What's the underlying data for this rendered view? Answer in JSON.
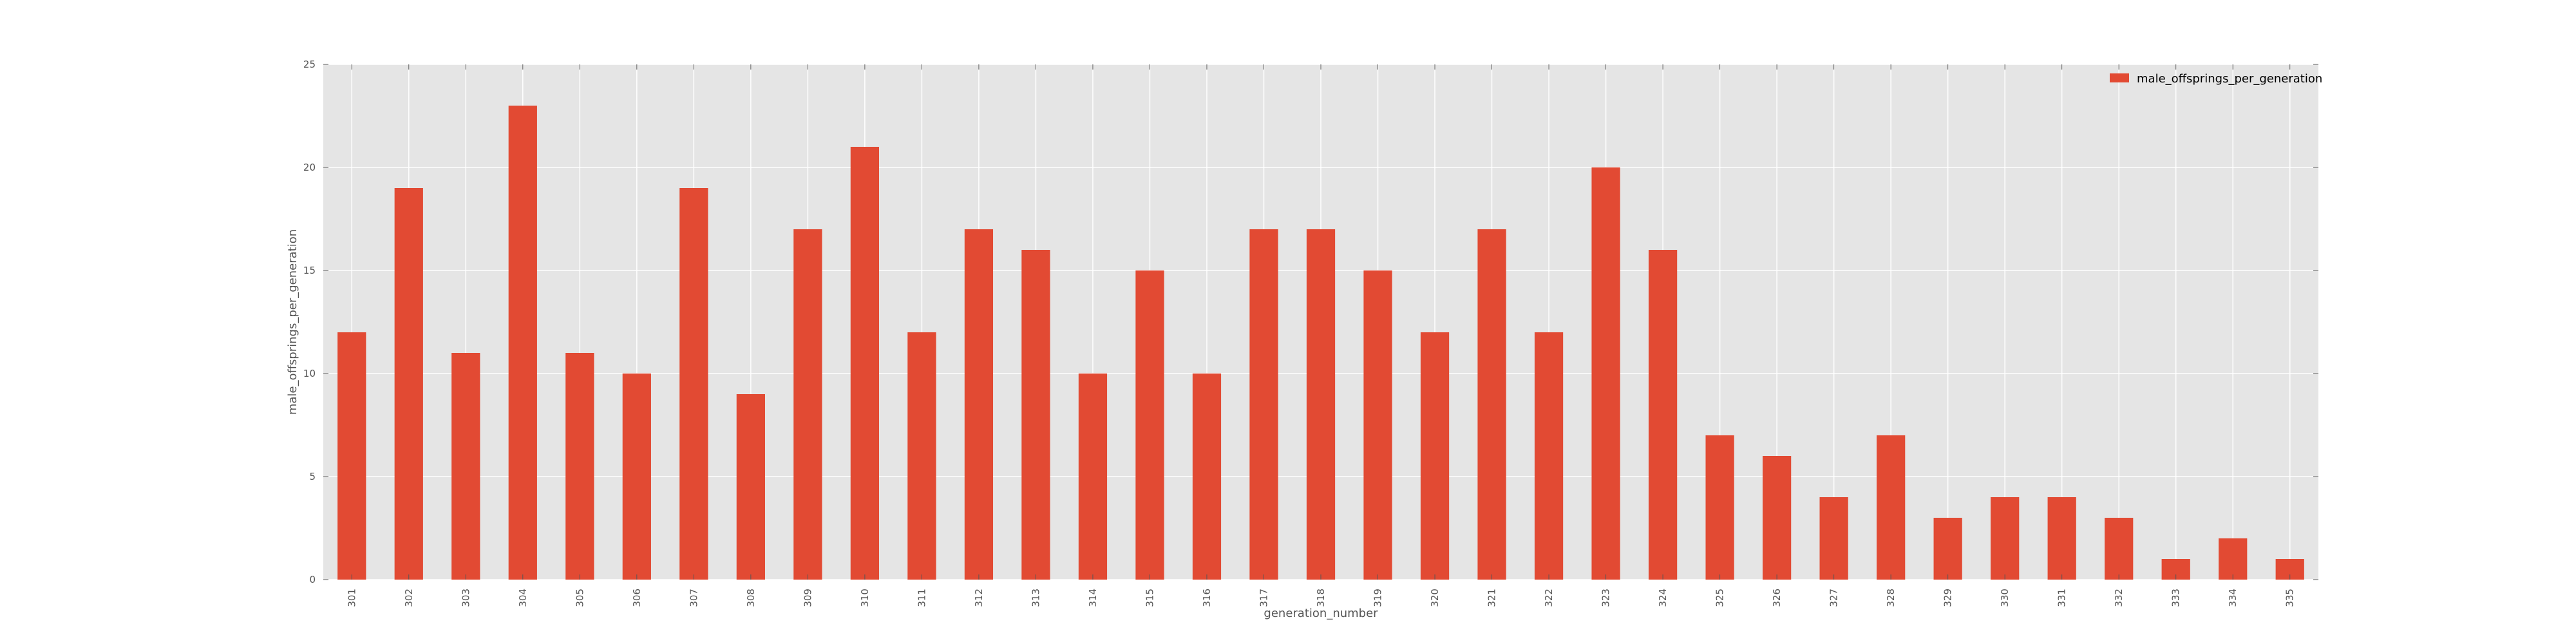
{
  "chart_data": {
    "type": "bar",
    "categories": [
      "301",
      "302",
      "303",
      "304",
      "305",
      "306",
      "307",
      "308",
      "309",
      "310",
      "311",
      "312",
      "313",
      "314",
      "315",
      "316",
      "317",
      "318",
      "319",
      "320",
      "321",
      "322",
      "323",
      "324",
      "325",
      "326",
      "327",
      "328",
      "329",
      "330",
      "331",
      "332",
      "333",
      "334",
      "335"
    ],
    "series": [
      {
        "name": "male_offsprings_per_generation",
        "values": [
          12,
          19,
          11,
          23,
          11,
          10,
          19,
          9,
          17,
          21,
          12,
          17,
          16,
          10,
          15,
          10,
          17,
          17,
          15,
          12,
          17,
          12,
          20,
          16,
          7,
          6,
          4,
          7,
          3,
          4,
          4,
          3,
          1,
          2,
          1
        ]
      }
    ],
    "xlabel": "generation_number",
    "ylabel": "male_offsprings_per_generation",
    "ylim": [
      0,
      25
    ],
    "yticks": [
      0,
      5,
      10,
      15,
      20,
      25
    ],
    "grid": true,
    "legend_position": "top-right",
    "colors": {
      "bar": "#e24a33",
      "plot_background": "#e5e5e5",
      "grid": "#ffffff",
      "text": "#555555"
    }
  }
}
